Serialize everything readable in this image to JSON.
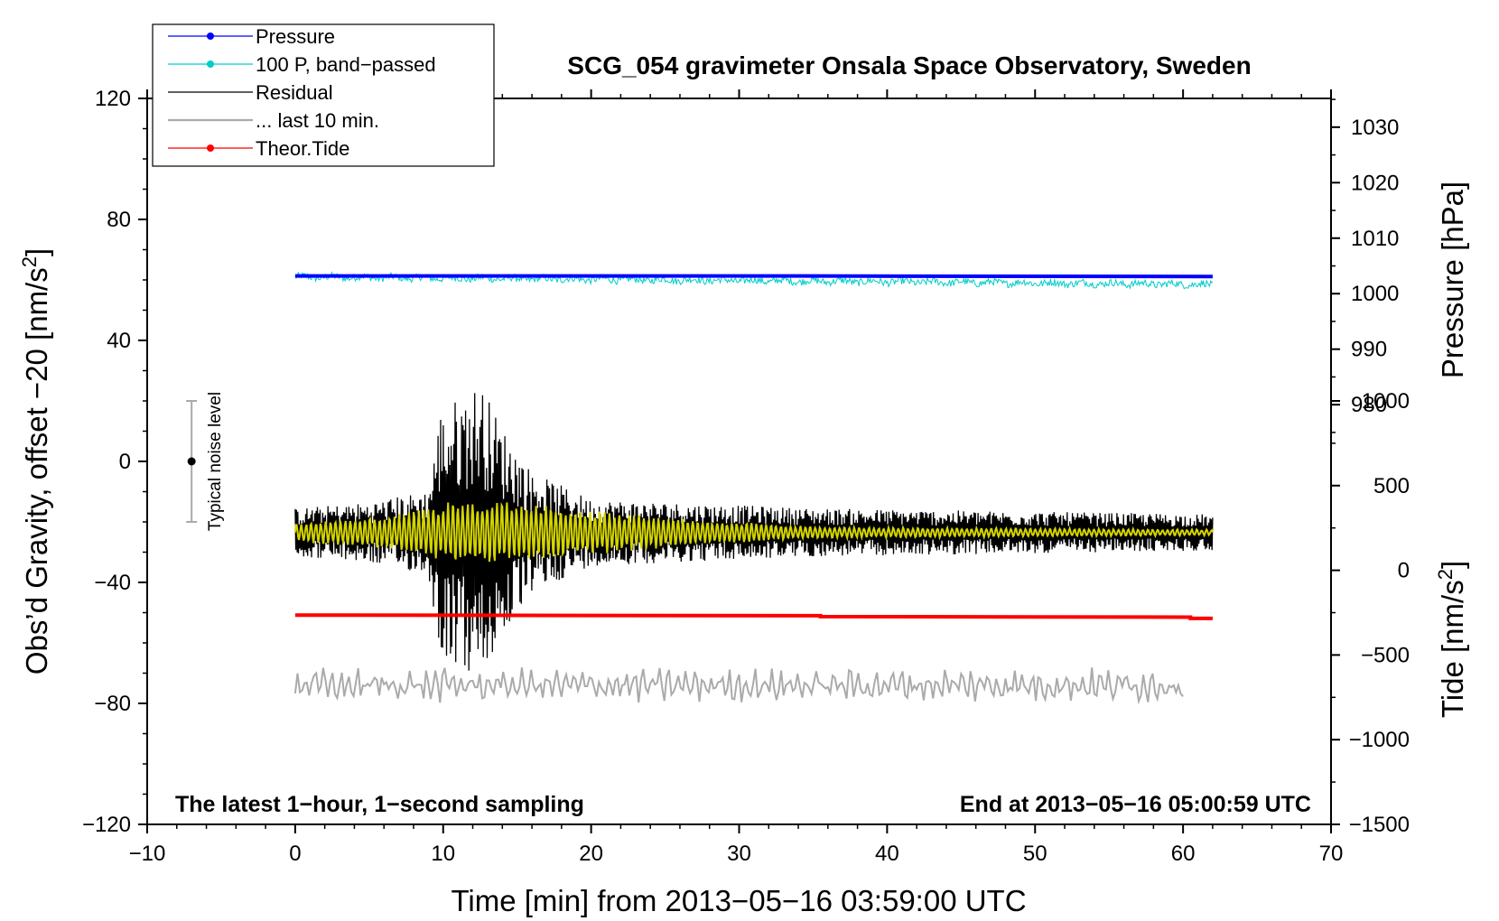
{
  "chart_data": {
    "type": "line",
    "title": "SCG_054 gravimeter Onsala Space Observatory, Sweden",
    "xlabel": "Time [min] from 2013−05−16 03:59:00 UTC",
    "xlim": [
      -10,
      70
    ],
    "xticks": [
      -10,
      0,
      10,
      20,
      30,
      40,
      50,
      60,
      70
    ],
    "xtick_labels": [
      "−10",
      "0",
      "10",
      "20",
      "30",
      "40",
      "50",
      "60",
      "70"
    ],
    "left_axis": {
      "label_main": "Obs’d Gravity, offset −20 [nm/s",
      "label_sup": "2",
      "label_end": "]",
      "ylim": [
        -120,
        120
      ],
      "ticks": [
        -120,
        -80,
        -40,
        0,
        40,
        80,
        120
      ],
      "tick_labels": [
        "−120",
        "−80",
        "−40",
        "0",
        "40",
        "80",
        "120"
      ]
    },
    "pressure_axis": {
      "label": "Pressure [hPa]",
      "ticks": [
        980,
        990,
        1000,
        1010,
        1020,
        1030
      ],
      "tick_labels": [
        "980",
        "990",
        "1000",
        "1010",
        "1020",
        "1030"
      ],
      "gravity_equiv": {
        "hpa_a": 980,
        "g_a": 18.75,
        "hpa_b": 1030,
        "g_b": 110.5
      }
    },
    "tide_axis": {
      "label_main": "Tide [nm/s",
      "label_sup": "2",
      "label_end": "]",
      "ticks": [
        -1500,
        -1000,
        -500,
        0,
        500,
        1000
      ],
      "tick_labels": [
        "−1500",
        "−1000",
        "−500",
        "0",
        "500",
        "1000"
      ],
      "gravity_equiv": {
        "tide_a": -1500,
        "g_a": -120,
        "tide_b": 1000,
        "g_b": 20
      }
    },
    "legend": [
      {
        "label": "Pressure",
        "color": "#0000ff",
        "marker": true
      },
      {
        "label": "100 P, band−passed",
        "color": "#00cccc",
        "marker": true
      },
      {
        "label": "Residual",
        "color": "#000000",
        "marker": false
      },
      {
        "label": "... last 10 min.",
        "color": "#aaaaaa",
        "marker": false
      },
      {
        "label": "Theor.Tide",
        "color": "#ff0000",
        "marker": true
      }
    ],
    "series": [
      {
        "name": "Pressure",
        "color": "#0000ff",
        "axis": "pressure",
        "x": [
          0,
          30,
          62
        ],
        "values": [
          1003.2,
          1003.2,
          1003.1
        ]
      },
      {
        "name": "100 P, band−passed",
        "color": "#00cccc",
        "axis": "left",
        "x_range": [
          0,
          62
        ],
        "level_start": 61,
        "level_end": 58.5,
        "noise": 1.2
      },
      {
        "name": "Residual",
        "color": "#000000",
        "axis": "left",
        "x_range": [
          0,
          62
        ],
        "level": -23.5,
        "envelope": [
          [
            0,
            8
          ],
          [
            5,
            10
          ],
          [
            9,
            14
          ],
          [
            9.8,
            40
          ],
          [
            11,
            45
          ],
          [
            12.5,
            50
          ],
          [
            14,
            35
          ],
          [
            16,
            20
          ],
          [
            20,
            11
          ],
          [
            35,
            8
          ],
          [
            62,
            6
          ]
        ]
      },
      {
        "name": "Residual (smoothed)",
        "color": "#d4d400",
        "axis": "left",
        "x_range": [
          0,
          62
        ],
        "level": -23.5,
        "envelope": [
          [
            0,
            3
          ],
          [
            7,
            6
          ],
          [
            10,
            10
          ],
          [
            12.5,
            11
          ],
          [
            17,
            9
          ],
          [
            25,
            5
          ],
          [
            35,
            2
          ],
          [
            62,
            1
          ]
        ]
      },
      {
        "name": "Theor.Tide",
        "color": "#ff0000",
        "axis": "left",
        "x": [
          0,
          35.5,
          35.5,
          60.5,
          60.5,
          62
        ],
        "values": [
          -50.8,
          -51.0,
          -51.3,
          -51.5,
          -51.9,
          -51.9
        ]
      },
      {
        "name": "... last 10 min.",
        "color": "#aaaaaa",
        "axis": "left",
        "x_range": [
          0,
          60
        ],
        "level": -74,
        "amplitude": 5
      }
    ],
    "noise_bar": {
      "label": "Typical noise level",
      "x": -7,
      "center": 0,
      "half_range": 20
    },
    "annotations": {
      "left": "The latest 1−hour, 1−second sampling",
      "right": "End at 2013−05−16 05:00:59 UTC"
    }
  }
}
